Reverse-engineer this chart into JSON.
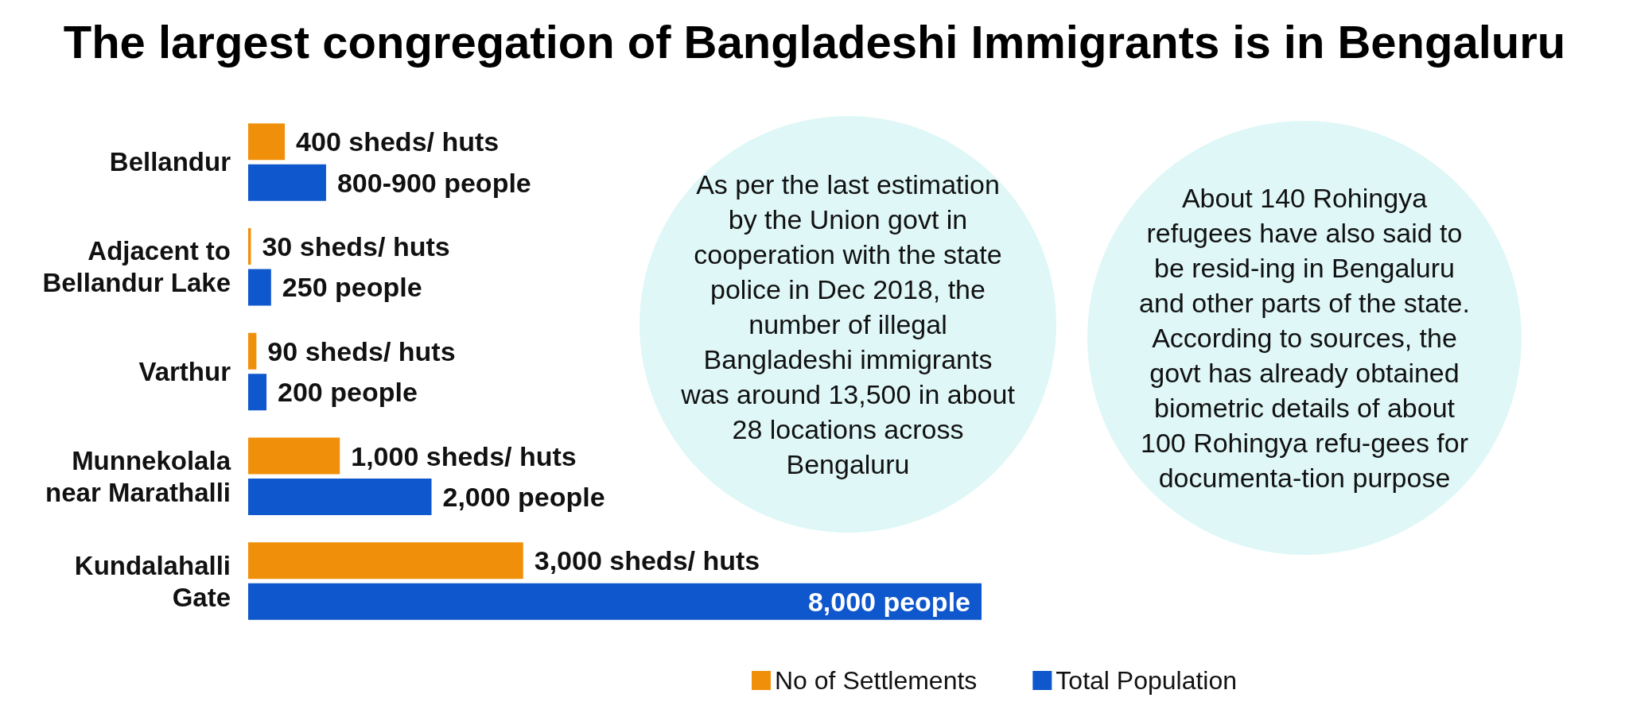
{
  "chart_data": {
    "type": "bar",
    "orientation": "horizontal",
    "title": "The largest congregation of Bangladeshi Immigrants is in Bengaluru",
    "categories": [
      "Bellandur",
      "Adjacent to\nBellandur Lake",
      "Varthur",
      "Munnekolala\nnear Marathalli",
      "Kundalahalli\nGate"
    ],
    "series": [
      {
        "name": "No of Settlements",
        "color": "#f0900a",
        "values": [
          400,
          30,
          90,
          1000,
          3000
        ],
        "value_labels": [
          "400 sheds/ huts",
          "30 sheds/ huts",
          "90 sheds/ huts",
          "1,000 sheds/ huts",
          "3,000 sheds/ huts"
        ]
      },
      {
        "name": "Total Population",
        "color": "#0f57cc",
        "values": [
          850,
          250,
          200,
          2000,
          8000
        ],
        "value_labels": [
          "800-900 people",
          "250 people",
          "200 people",
          "2,000 people",
          "8,000 people"
        ]
      }
    ],
    "annotations": [
      "As per the last estimation by the Union govt in cooperation with the state police in Dec 2018, the number of illegal Bangladeshi immigrants was around 13,500 in about 28 locations across Bengaluru",
      "About  140 Rohingya refugees have also said to be resid-ing in Bengaluru and other parts of the state. According to sources, the govt has already obtained biometric details of about 100 Rohingya refu-gees for documenta-tion purpose"
    ],
    "legend": "bottom"
  }
}
